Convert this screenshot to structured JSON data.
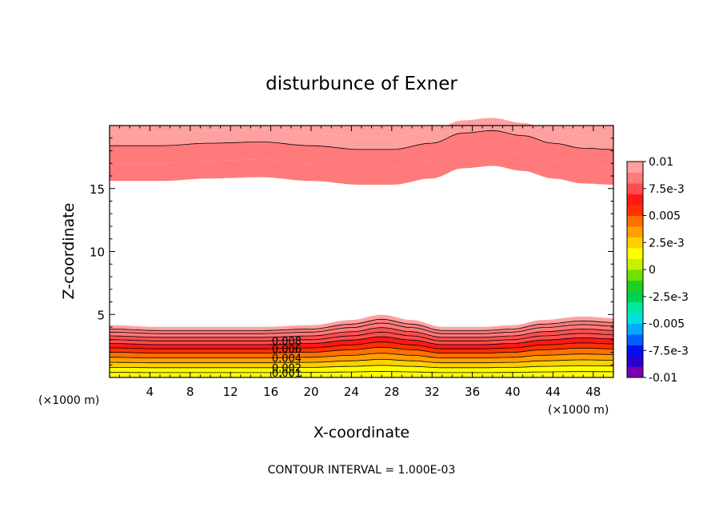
{
  "chart_data": {
    "type": "contour",
    "title": "disturbunce of Exner",
    "xlabel": "X-coordinate",
    "ylabel": "Z-coordinate",
    "x_unit": "(×1000 m)",
    "x_unit_right": "(×1000 m)",
    "xlim": [
      0,
      50
    ],
    "ylim": [
      0,
      20
    ],
    "x_ticks": [
      "4",
      "8",
      "12",
      "16",
      "20",
      "24",
      "28",
      "32",
      "36",
      "40",
      "44",
      "48"
    ],
    "y_ticks": [
      "5",
      "10",
      "15"
    ],
    "footer": "CONTOUR INTERVAL = 1.000E-03",
    "contour_interval": 0.001,
    "colorbar": {
      "labels": [
        "0.01",
        "7.5e-3",
        "0.005",
        "2.5e-3",
        "0",
        "-2.5e-3",
        "-0.005",
        "-7.5e-3",
        "-0.01"
      ],
      "min": -0.01,
      "max": 0.01,
      "colors": [
        "#7a00b0",
        "#2a00d0",
        "#0010f0",
        "#0060ff",
        "#00a8ff",
        "#00e0e0",
        "#00e8a0",
        "#00d050",
        "#20d020",
        "#70e000",
        "#c8f000",
        "#ffff00",
        "#ffd000",
        "#ffa000",
        "#ff7000",
        "#ff3000",
        "#ff1818",
        "#ff4e4e",
        "#ff7a7a",
        "#ffa0a0"
      ]
    },
    "contour_labels": [
      "0.008",
      "0.006",
      "0.004",
      "0.002",
      "0.001"
    ],
    "upper_band_x": [
      0,
      5,
      10,
      15,
      20,
      25,
      28,
      32,
      35,
      38,
      41,
      44,
      47,
      50
    ],
    "upper_band_offset": [
      0,
      0,
      0.2,
      0.3,
      0,
      -0.3,
      -0.3,
      0.2,
      1.0,
      1.2,
      0.8,
      0.2,
      -0.2,
      -0.3
    ],
    "lower_band_x": [
      0,
      5,
      10,
      15,
      20,
      24,
      27,
      30,
      33,
      37,
      40,
      43,
      47,
      50
    ],
    "lower_band_offset": [
      0,
      -0.1,
      -0.1,
      -0.1,
      0,
      0.3,
      0.6,
      0.3,
      -0.1,
      -0.1,
      0,
      0.3,
      0.5,
      0.4
    ]
  }
}
